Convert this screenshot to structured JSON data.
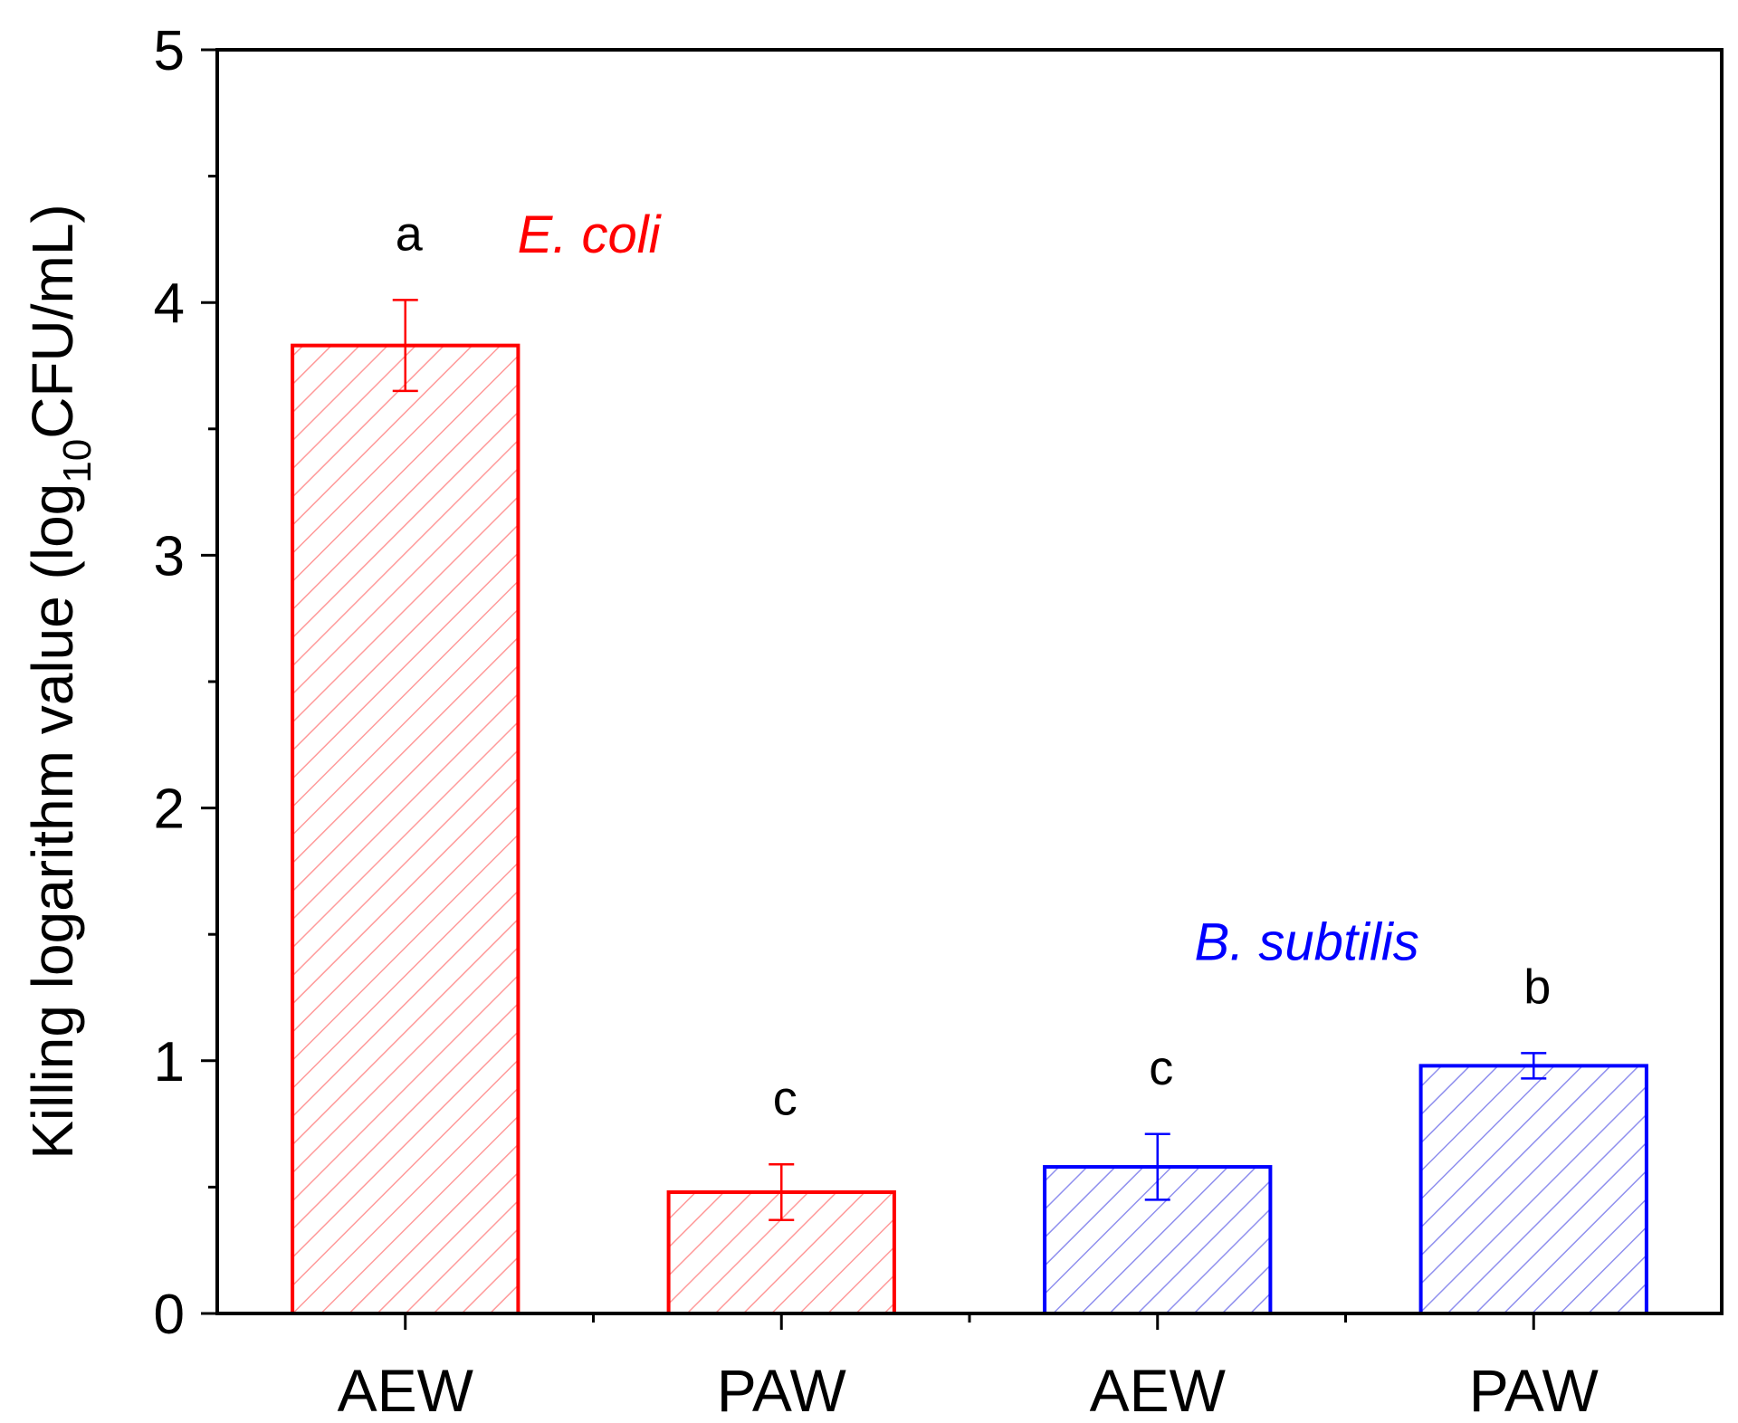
{
  "chart_data": {
    "type": "bar",
    "title": "",
    "xlabel": "",
    "ylabel": {
      "main": "Killing logarithm value (log",
      "subscript": "10",
      "tail": "CFU/mL)"
    },
    "ylim": [
      0,
      5
    ],
    "yticks": [
      0,
      1,
      2,
      3,
      4,
      5
    ],
    "ytick_labels": [
      "0",
      "1",
      "2",
      "3",
      "4",
      "5"
    ],
    "grid": false,
    "bars": [
      {
        "category": "AEW",
        "species": "E. coli",
        "value": 3.83,
        "error": 0.18,
        "significance": "a",
        "color": "#ff0000"
      },
      {
        "category": "PAW",
        "species": "E. coli",
        "value": 0.48,
        "error": 0.11,
        "significance": "c",
        "color": "#ff0000"
      },
      {
        "category": "AEW",
        "species": "B. subtilis",
        "value": 0.58,
        "error": 0.13,
        "significance": "c",
        "color": "#0000ff"
      },
      {
        "category": "PAW",
        "species": "B. subtilis",
        "value": 0.98,
        "error": 0.05,
        "significance": "b",
        "color": "#0000ff"
      }
    ],
    "annotations": [
      {
        "text": "E. coli",
        "color": "#ff0000",
        "x_category": 0.55,
        "y": 4.27
      },
      {
        "text": "B. subtilis",
        "color": "#0000ff",
        "x_category": 2.35,
        "y": 1.47
      }
    ]
  }
}
